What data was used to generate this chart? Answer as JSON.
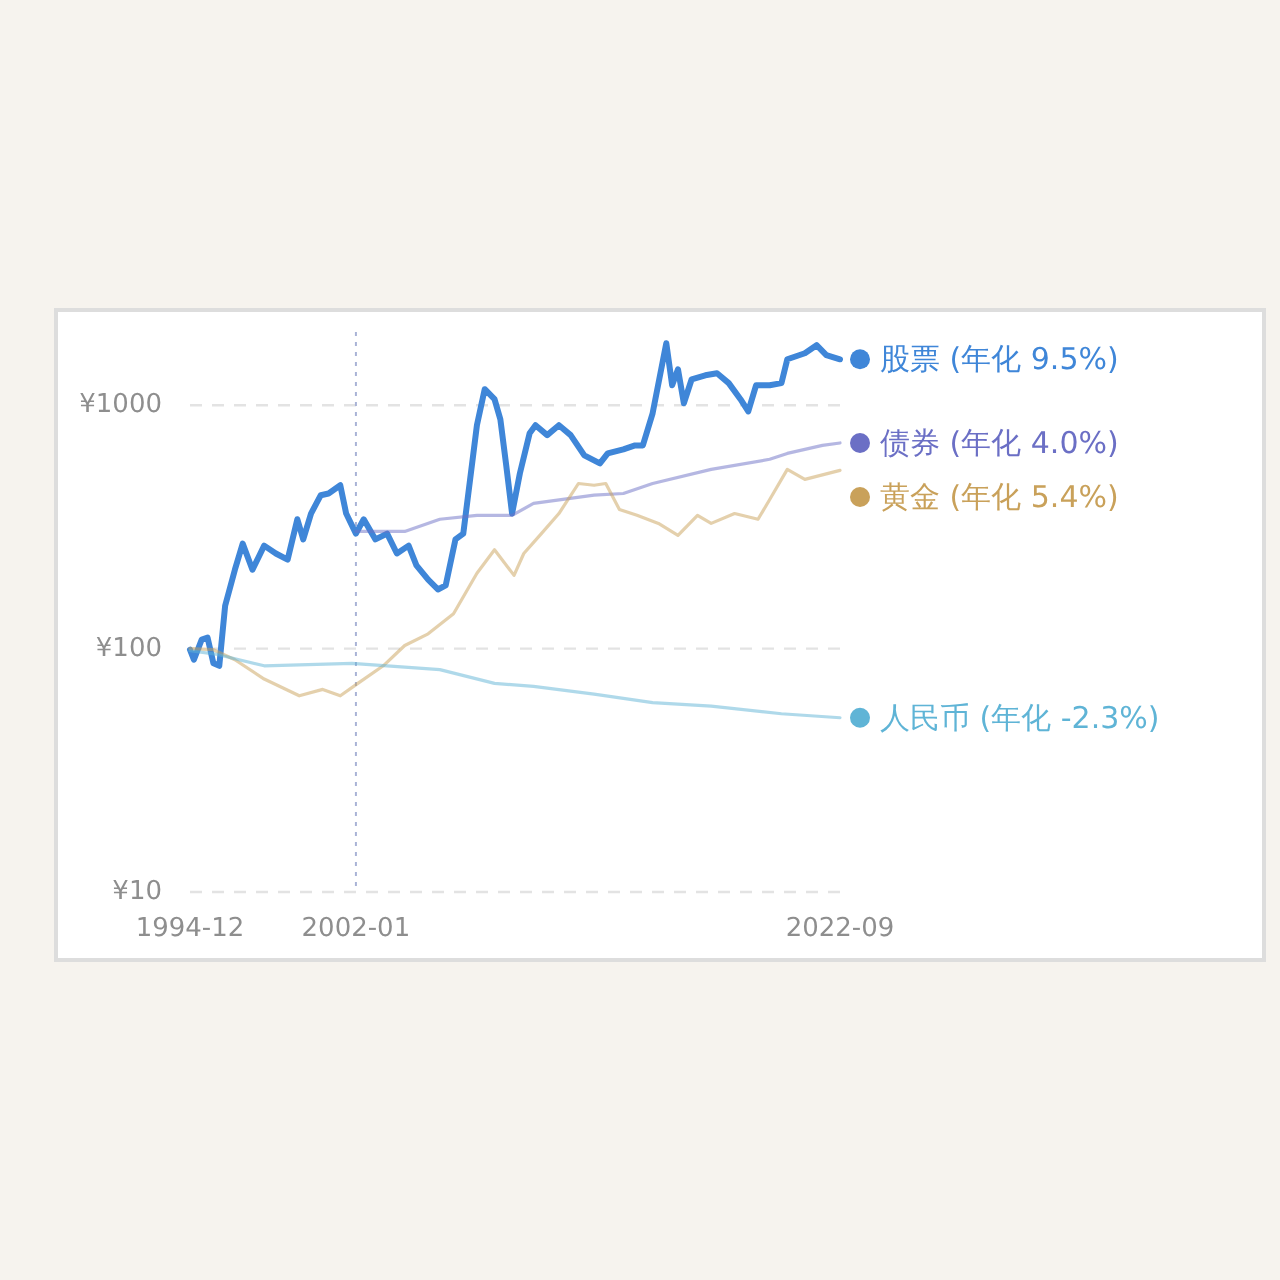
{
  "chart_data": {
    "type": "line",
    "legend": "right",
    "log": "y",
    "grid": "y",
    "line_style": "solid",
    "xlim": [
      "1994-12",
      "2022-09"
    ],
    "xticks": [
      "1994-12",
      "2002-01",
      "2022-09"
    ],
    "ylim": [
      10,
      2000
    ],
    "yticks": [
      {
        "value": 10,
        "label": "¥10"
      },
      {
        "value": 100,
        "label": "¥100"
      },
      {
        "value": 1000,
        "label": "¥1000"
      }
    ],
    "ref_lines": [
      {
        "axis": "x",
        "value": "2002-01",
        "color": "#a9b3d6",
        "line_style": "dotted"
      }
    ],
    "series": [
      {
        "name": "股票 (年化 9.5%)",
        "color": "#3f86d8",
        "x": [
          "1994-12",
          "1995-02",
          "1995-06",
          "1995-09",
          "1995-12",
          "1996-03",
          "1996-06",
          "1996-11",
          "1997-03",
          "1997-08",
          "1998-02",
          "1998-08",
          "1999-02",
          "1999-07",
          "1999-10",
          "2000-02",
          "2000-07",
          "2000-11",
          "2001-05",
          "2001-08",
          "2002-01",
          "2002-05",
          "2002-11",
          "2003-05",
          "2003-10",
          "2004-04",
          "2004-08",
          "2005-02",
          "2005-07",
          "2005-11",
          "2006-04",
          "2006-08",
          "2007-03",
          "2007-07",
          "2007-12",
          "2008-03",
          "2008-06",
          "2008-09",
          "2009-01",
          "2009-06",
          "2009-09",
          "2010-03",
          "2010-09",
          "2011-03",
          "2011-10",
          "2012-06",
          "2012-10",
          "2013-06",
          "2013-12",
          "2014-04",
          "2014-09",
          "2015-04",
          "2015-07",
          "2015-10",
          "2016-01",
          "2016-05",
          "2016-12",
          "2017-06",
          "2017-12",
          "2018-06",
          "2018-10",
          "2019-02",
          "2019-09",
          "2020-03",
          "2020-06",
          "2021-03",
          "2021-09",
          "2022-02",
          "2022-09"
        ],
        "values": [
          99,
          90,
          109,
          111,
          87,
          85,
          150,
          211,
          270,
          211,
          265,
          246,
          232,
          340,
          281,
          359,
          427,
          434,
          469,
          359,
          297,
          340,
          281,
          297,
          246,
          265,
          220,
          192,
          175,
          182,
          281,
          297,
          828,
          1164,
          1059,
          875,
          566,
          359,
          525,
          767,
          828,
          754,
          828,
          754,
          622,
          577,
          634,
          659,
          684,
          684,
          927,
          1799,
          1208,
          1406,
          1019,
          1279,
          1328,
          1354,
          1233,
          1059,
          944,
          1208,
          1208,
          1233,
          1545,
          1636,
          1766,
          1607,
          1545
        ]
      },
      {
        "name": "债券 (年化 4.0%)",
        "color": "#6b6fc5",
        "x": [
          "2002-01",
          "2004-02",
          "2005-08",
          "2007-03",
          "2008-09",
          "2009-08",
          "2012-03",
          "2013-06",
          "2014-09",
          "2017-03",
          "2019-09",
          "2020-06",
          "2021-12",
          "2022-09"
        ],
        "values": [
          303,
          303,
          340,
          353,
          353,
          395,
          427,
          434,
          477,
          545,
          600,
          634,
          684,
          700
        ]
      },
      {
        "name": "黄金 (年化 5.4%)",
        "color": "#c9a15a",
        "x": [
          "1994-12",
          "1995-12",
          "1996-11",
          "1998-02",
          "1999-08",
          "2000-08",
          "2001-05",
          "2002-02",
          "2003-03",
          "2004-02",
          "2005-02",
          "2006-03",
          "2007-03",
          "2007-12",
          "2008-10",
          "2009-03",
          "2009-12",
          "2010-09",
          "2011-07",
          "2012-03",
          "2012-09",
          "2013-04",
          "2014-01",
          "2014-12",
          "2015-10",
          "2016-08",
          "2017-03",
          "2018-03",
          "2019-03",
          "2019-09",
          "2020-06",
          "2021-03",
          "2022-03",
          "2022-09"
        ],
        "values": [
          100,
          99,
          90,
          75,
          64,
          68,
          64,
          72,
          85,
          103,
          115,
          139,
          204,
          255,
          200,
          246,
          297,
          359,
          477,
          469,
          477,
          373,
          353,
          327,
          292,
          353,
          327,
          359,
          340,
          410,
          545,
          496,
          525,
          540
        ]
      },
      {
        "name": "人民币 (年化 -2.3%)",
        "color": "#5fb4d6",
        "x": [
          "1994-12",
          "1996-01",
          "1998-02",
          "2001-11",
          "2005-08",
          "2007-12",
          "2009-08",
          "2012-03",
          "2014-09",
          "2017-03",
          "2020-03",
          "2022-09"
        ],
        "values": [
          98,
          95,
          85,
          87,
          82,
          72,
          70,
          65,
          60,
          58,
          54,
          52
        ]
      }
    ]
  }
}
